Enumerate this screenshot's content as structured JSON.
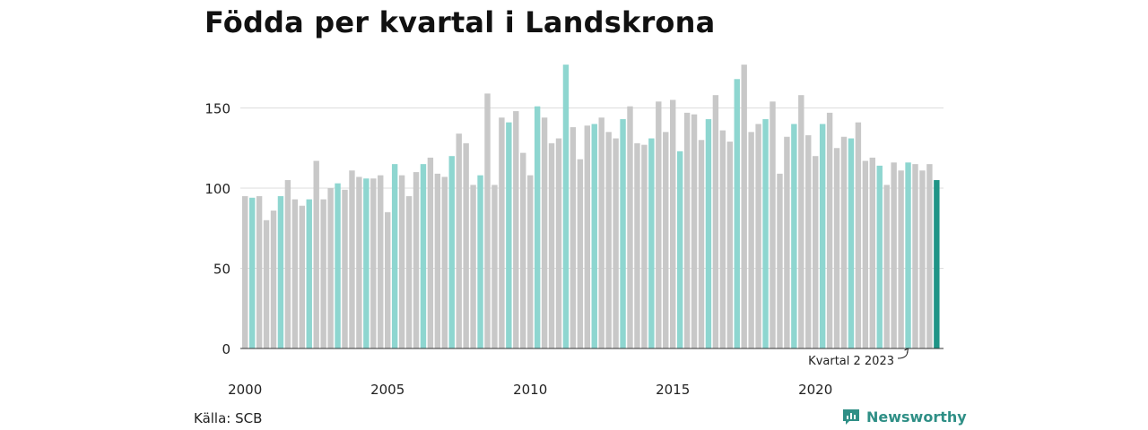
{
  "title": "Födda per kvartal i Landskrona",
  "source": "Källa: SCB",
  "brand": "Newsworthy",
  "annotation": "Kvartal 2 2023",
  "colors": {
    "q1": "#c8c8c8",
    "q2": "#8ed6d0",
    "q3": "#c8c8c8",
    "q4": "#c8c8c8",
    "highlight": "#1f9486",
    "grid": "#dddddd",
    "axis": "#333333",
    "brand": "#2f8f86"
  },
  "chart_data": {
    "type": "bar",
    "title": "Födda per kvartal i Landskrona",
    "xlabel": "",
    "ylabel": "",
    "ylim": [
      0,
      180
    ],
    "yticks": [
      0,
      50,
      100,
      150
    ],
    "xticks": [
      "2000",
      "2005",
      "2010",
      "2015",
      "2020"
    ],
    "grid": true,
    "highlight_label": "Kvartal 2 2023",
    "series": [
      {
        "values": [
          95,
          94,
          95,
          80,
          86,
          95,
          105,
          93,
          89,
          93,
          117,
          93,
          100,
          103,
          99,
          111,
          107,
          106,
          106,
          108,
          85,
          115,
          108,
          95,
          110,
          115,
          119,
          109,
          107,
          120,
          134,
          128,
          102,
          108,
          159,
          102,
          144,
          141,
          148,
          122,
          108,
          151,
          144,
          128,
          131,
          177,
          138,
          118,
          139,
          140,
          144,
          135,
          131,
          143,
          151,
          128,
          127,
          131,
          154,
          135,
          155,
          123,
          147,
          146,
          130,
          143,
          158,
          136,
          129,
          168,
          177,
          135,
          140,
          143,
          154,
          109,
          132,
          140,
          158,
          133,
          120,
          140,
          147,
          125,
          132,
          131,
          141,
          117,
          119,
          114,
          102,
          116,
          111,
          116,
          115,
          111,
          115,
          105
        ]
      }
    ]
  }
}
